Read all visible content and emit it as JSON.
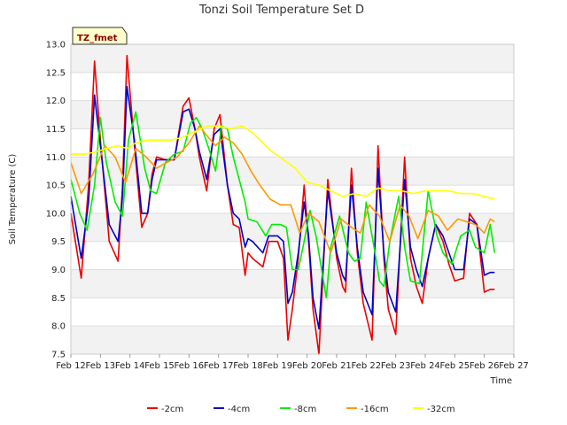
{
  "chart_data": {
    "type": "line",
    "title": "Tonzi Soil Temperature Set D",
    "xlabel": "Time",
    "ylabel": "Soil Temperature (C)",
    "badge": "TZ_fmet",
    "x_ticks": [
      "Feb 12",
      "Feb 13",
      "Feb 14",
      "Feb 15",
      "Feb 16",
      "Feb 17",
      "Feb 18",
      "Feb 19",
      "Feb 20",
      "Feb 21",
      "Feb 22",
      "Feb 23",
      "Feb 24",
      "Feb 25",
      "Feb 26",
      "Feb 27"
    ],
    "xlim": [
      0,
      15
    ],
    "ylim": [
      7.5,
      13.0
    ],
    "y_ticks": [
      "7.5",
      "8.0",
      "8.5",
      "9.0",
      "9.5",
      "10.0",
      "10.5",
      "11.0",
      "11.5",
      "12.0",
      "12.5",
      "13.0"
    ],
    "legend_position": "bottom-center",
    "series": [
      {
        "name": "-2cm",
        "color": "#ee0000",
        "x": [
          0.0,
          0.35,
          0.6,
          0.8,
          1.0,
          1.3,
          1.6,
          1.75,
          1.9,
          2.15,
          2.4,
          2.6,
          2.75,
          2.9,
          3.2,
          3.5,
          3.8,
          4.0,
          4.2,
          4.35,
          4.6,
          4.85,
          5.05,
          5.3,
          5.5,
          5.7,
          5.9,
          6.0,
          6.15,
          6.5,
          6.7,
          7.0,
          7.2,
          7.35,
          7.5,
          7.7,
          7.9,
          8.05,
          8.2,
          8.4,
          8.7,
          9.0,
          9.2,
          9.3,
          9.5,
          9.7,
          9.9,
          10.2,
          10.4,
          10.6,
          10.75,
          11.0,
          11.3,
          11.5,
          11.7,
          11.9,
          12.1,
          12.35,
          12.6,
          12.8,
          13.0,
          13.3,
          13.5,
          13.75,
          14.0,
          14.2,
          14.35
        ],
        "y": [
          10.0,
          8.85,
          10.5,
          12.7,
          11.3,
          9.5,
          9.15,
          10.5,
          12.8,
          11.2,
          9.75,
          10.0,
          10.7,
          11.0,
          10.95,
          10.95,
          11.9,
          12.05,
          11.5,
          11.0,
          10.4,
          11.5,
          11.75,
          10.5,
          9.8,
          9.75,
          8.9,
          9.3,
          9.2,
          9.05,
          9.5,
          9.5,
          9.2,
          7.75,
          8.3,
          9.2,
          10.5,
          9.5,
          8.3,
          7.5,
          10.6,
          9.2,
          8.7,
          8.6,
          10.8,
          9.3,
          8.4,
          7.75,
          11.2,
          9.2,
          8.3,
          7.85,
          11.0,
          9.2,
          8.7,
          8.4,
          9.2,
          9.8,
          9.5,
          9.1,
          8.8,
          8.85,
          10.0,
          9.8,
          8.6,
          8.65,
          8.65
        ]
      },
      {
        "name": "-4cm",
        "color": "#0000cc",
        "x": [
          0.0,
          0.35,
          0.6,
          0.8,
          1.0,
          1.3,
          1.6,
          1.75,
          1.9,
          2.15,
          2.4,
          2.6,
          2.75,
          2.9,
          3.2,
          3.5,
          3.8,
          4.0,
          4.2,
          4.35,
          4.6,
          4.85,
          5.05,
          5.3,
          5.5,
          5.7,
          5.9,
          6.0,
          6.15,
          6.5,
          6.7,
          7.0,
          7.2,
          7.35,
          7.5,
          7.7,
          7.9,
          8.05,
          8.2,
          8.4,
          8.7,
          9.0,
          9.2,
          9.3,
          9.5,
          9.7,
          9.9,
          10.2,
          10.4,
          10.6,
          10.75,
          11.0,
          11.3,
          11.5,
          11.7,
          11.9,
          12.1,
          12.35,
          12.6,
          12.8,
          13.0,
          13.3,
          13.5,
          13.75,
          14.0,
          14.2,
          14.35
        ],
        "y": [
          10.3,
          9.2,
          10.2,
          12.1,
          11.2,
          9.8,
          9.5,
          10.3,
          12.25,
          11.3,
          10.0,
          10.0,
          10.6,
          10.95,
          10.95,
          10.95,
          11.8,
          11.85,
          11.5,
          11.1,
          10.6,
          11.4,
          11.5,
          10.5,
          10.0,
          9.9,
          9.4,
          9.55,
          9.5,
          9.3,
          9.6,
          9.6,
          9.5,
          8.4,
          8.6,
          9.3,
          10.2,
          9.6,
          8.5,
          7.95,
          10.4,
          9.3,
          8.9,
          8.8,
          10.5,
          9.4,
          8.6,
          8.2,
          10.8,
          9.3,
          8.6,
          8.25,
          10.6,
          9.4,
          9.0,
          8.7,
          9.2,
          9.8,
          9.6,
          9.3,
          9.0,
          9.0,
          9.9,
          9.8,
          8.9,
          8.95,
          8.95
        ]
      },
      {
        "name": "-8cm",
        "color": "#00ee00",
        "x": [
          0.0,
          0.3,
          0.55,
          0.8,
          1.0,
          1.2,
          1.5,
          1.75,
          1.95,
          2.2,
          2.5,
          2.7,
          2.9,
          3.2,
          3.5,
          3.8,
          4.05,
          4.25,
          4.45,
          4.7,
          4.9,
          5.1,
          5.3,
          5.5,
          5.7,
          5.9,
          6.0,
          6.3,
          6.6,
          6.8,
          7.1,
          7.3,
          7.5,
          7.7,
          7.9,
          8.1,
          8.3,
          8.65,
          8.8,
          9.1,
          9.4,
          9.6,
          9.8,
          10.0,
          10.3,
          10.45,
          10.6,
          10.8,
          11.1,
          11.3,
          11.5,
          11.8,
          12.1,
          12.4,
          12.6,
          12.9,
          13.2,
          13.5,
          13.7,
          14.0,
          14.2,
          14.35
        ],
        "y": [
          10.6,
          10.0,
          9.7,
          10.5,
          11.7,
          10.9,
          10.2,
          9.95,
          11.3,
          11.8,
          10.8,
          10.4,
          10.35,
          10.9,
          11.05,
          11.1,
          11.6,
          11.7,
          11.5,
          11.1,
          10.75,
          11.55,
          11.5,
          11.0,
          10.6,
          10.2,
          9.9,
          9.85,
          9.6,
          9.8,
          9.8,
          9.75,
          9.0,
          9.0,
          9.5,
          10.05,
          9.6,
          8.5,
          9.4,
          9.95,
          9.3,
          9.15,
          9.2,
          10.2,
          9.3,
          8.8,
          8.7,
          9.5,
          10.3,
          9.4,
          8.8,
          8.75,
          10.4,
          9.6,
          9.3,
          9.1,
          9.6,
          9.7,
          9.4,
          9.3,
          9.8,
          9.3
        ]
      },
      {
        "name": "-16cm",
        "color": "#ff9900",
        "x": [
          0.0,
          0.35,
          0.75,
          1.15,
          1.5,
          1.85,
          2.2,
          2.55,
          2.9,
          3.25,
          3.6,
          4.0,
          4.35,
          4.65,
          4.9,
          5.2,
          5.5,
          5.8,
          6.1,
          6.4,
          6.75,
          7.1,
          7.45,
          7.75,
          8.05,
          8.4,
          8.8,
          9.15,
          9.5,
          9.8,
          10.1,
          10.45,
          10.8,
          11.15,
          11.45,
          11.75,
          12.1,
          12.45,
          12.75,
          13.1,
          13.4,
          13.7,
          14.0,
          14.2,
          14.35
        ],
        "y": [
          10.9,
          10.35,
          10.7,
          11.2,
          11.0,
          10.55,
          11.15,
          11.0,
          10.8,
          10.9,
          11.0,
          11.25,
          11.55,
          11.35,
          11.2,
          11.35,
          11.25,
          11.05,
          10.75,
          10.5,
          10.25,
          10.15,
          10.15,
          9.65,
          10.0,
          9.85,
          9.3,
          9.9,
          9.75,
          9.65,
          10.15,
          9.95,
          9.5,
          10.15,
          9.95,
          9.55,
          10.05,
          9.95,
          9.7,
          9.9,
          9.85,
          9.8,
          9.65,
          9.9,
          9.85
        ]
      },
      {
        "name": "-32cm",
        "color": "#ffff00",
        "x": [
          0.0,
          0.5,
          0.9,
          1.2,
          1.6,
          1.9,
          2.2,
          2.6,
          3.0,
          3.4,
          3.8,
          4.2,
          4.6,
          5.0,
          5.4,
          5.8,
          6.1,
          6.4,
          6.8,
          7.2,
          7.6,
          8.0,
          8.4,
          8.8,
          9.2,
          9.6,
          10.0,
          10.4,
          10.8,
          11.2,
          11.6,
          12.0,
          12.4,
          12.8,
          13.2,
          13.6,
          14.0,
          14.35
        ],
        "y": [
          11.05,
          11.05,
          11.1,
          11.15,
          11.2,
          11.15,
          11.25,
          11.3,
          11.3,
          11.3,
          11.35,
          11.45,
          11.55,
          11.55,
          11.5,
          11.55,
          11.45,
          11.3,
          11.1,
          10.95,
          10.8,
          10.55,
          10.5,
          10.4,
          10.3,
          10.35,
          10.3,
          10.45,
          10.4,
          10.4,
          10.35,
          10.4,
          10.4,
          10.4,
          10.35,
          10.35,
          10.3,
          10.25
        ]
      }
    ]
  }
}
